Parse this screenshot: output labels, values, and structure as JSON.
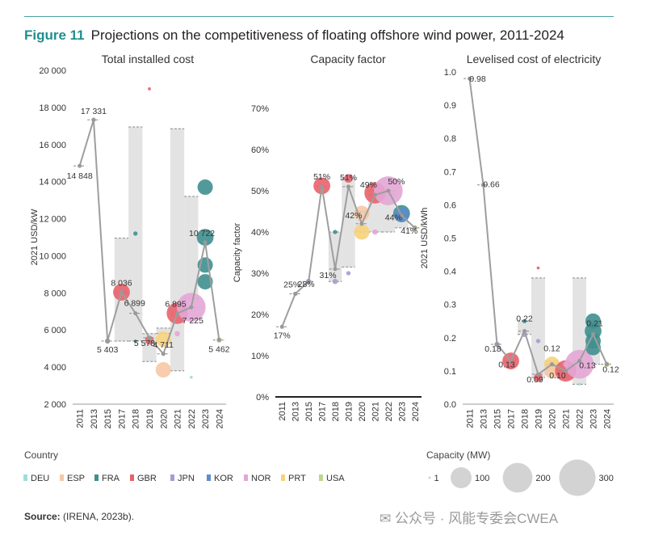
{
  "figure": {
    "number": "Figure 11",
    "title": "Projections on the competitiveness of floating offshore wind power, 2011-2024"
  },
  "colors": {
    "DEU": "#9fdede",
    "ESP": "#f6c8a4",
    "FRA": "#3f8f8f",
    "GBR": "#e8626b",
    "JPN": "#a99ad3",
    "KOR": "#5b8ec9",
    "NOR": "#e3a6d6",
    "PRT": "#f6d27b",
    "USA": "#bcd68c",
    "line": "#9e9e9e",
    "range": "#e3e3e3"
  },
  "chart_data": [
    {
      "type": "line",
      "title": "Total installed cost",
      "ylabel": "2021 USD/kW",
      "ylim": [
        2000,
        20000
      ],
      "yticks": [
        "2 000",
        "4 000",
        "6 000",
        "8 000",
        "10 000",
        "12 000",
        "14 000",
        "16 000",
        "18 000",
        "20 000"
      ],
      "yticks_values": [
        2000,
        4000,
        6000,
        8000,
        10000,
        12000,
        14000,
        16000,
        18000,
        20000
      ],
      "categories": [
        "2011",
        "2013",
        "2015",
        "2017",
        "2018",
        "2019",
        "2020",
        "2021",
        "2022",
        "2023",
        "2024"
      ],
      "series": [
        {
          "values": [
            14848,
            17331,
            5403,
            8036,
            6899,
            5578,
            4711,
            6895,
            7225,
            10722,
            5462
          ]
        }
      ],
      "value_labels": [
        "14 848",
        "17 331",
        "5 403",
        "8 036",
        "6 899",
        "5 578",
        "4 711",
        "6 895",
        "7 225",
        "10 722",
        "5 462"
      ],
      "ranges": [
        null,
        null,
        null,
        [
          5400,
          10950
        ],
        [
          5400,
          16950
        ],
        [
          4300,
          5800
        ],
        [
          5800,
          6100
        ],
        [
          3800,
          16850
        ],
        [
          7700,
          13200
        ],
        null,
        null
      ],
      "projects": [
        {
          "x": "2011",
          "y": 14848,
          "c": "USA",
          "cap": 1
        },
        {
          "x": "2013",
          "y": 17331,
          "c": "JPN",
          "cap": 2
        },
        {
          "x": "2015",
          "y": 5403,
          "c": "JPN",
          "cap": 3
        },
        {
          "x": "2017",
          "y": 8036,
          "c": "GBR",
          "cap": 30
        },
        {
          "x": "2018",
          "y": 11200,
          "c": "FRA",
          "cap": 2
        },
        {
          "x": "2018",
          "y": 5400,
          "c": "FRA",
          "cap": 1
        },
        {
          "x": "2019",
          "y": 19000,
          "c": "GBR",
          "cap": 1
        },
        {
          "x": "2019",
          "y": 5450,
          "c": "GBR",
          "cap": 8
        },
        {
          "x": "2020",
          "y": 5500,
          "c": "PRT",
          "cap": 25
        },
        {
          "x": "2020",
          "y": 3850,
          "c": "ESP",
          "cap": 25
        },
        {
          "x": "2021",
          "y": 5800,
          "c": "NOR",
          "cap": 3
        },
        {
          "x": "2021",
          "y": 6900,
          "c": "GBR",
          "cap": 48
        },
        {
          "x": "2022",
          "y": 7225,
          "c": "NOR",
          "cap": 88
        },
        {
          "x": "2022",
          "y": 3450,
          "c": "DEU",
          "cap": 1
        },
        {
          "x": "2023",
          "y": 13700,
          "c": "FRA",
          "cap": 25
        },
        {
          "x": "2023",
          "y": 11000,
          "c": "FRA",
          "cap": 30
        },
        {
          "x": "2023",
          "y": 9500,
          "c": "FRA",
          "cap": 25
        },
        {
          "x": "2023",
          "y": 8600,
          "c": "FRA",
          "cap": 25
        },
        {
          "x": "2024",
          "y": 5462,
          "c": "USA",
          "cap": 3
        }
      ]
    },
    {
      "type": "line",
      "title": "Capacity factor",
      "ylabel": "Capacity factor",
      "ylim": [
        0,
        70
      ],
      "yticks": [
        "0%",
        "10%",
        "20%",
        "30%",
        "40%",
        "50%",
        "60%",
        "70%"
      ],
      "yticks_values": [
        0,
        10,
        20,
        30,
        40,
        50,
        60,
        70
      ],
      "categories": [
        "2011",
        "2013",
        "2015",
        "2017",
        "2018",
        "2019",
        "2020",
        "2021",
        "2022",
        "2023",
        "2024"
      ],
      "series": [
        {
          "values": [
            17,
            25,
            28,
            51,
            31,
            51,
            42,
            49,
            50,
            44,
            41
          ]
        }
      ],
      "value_labels": [
        "17%",
        "25%",
        "28%",
        "51%",
        "31%",
        "51%",
        "42%",
        "49%",
        "50%",
        "44%",
        "41%"
      ],
      "ranges": [
        null,
        null,
        null,
        null,
        [
          28,
          40
        ],
        [
          31.5,
          53
        ],
        [
          40,
          45
        ],
        [
          40,
          50
        ],
        [
          40,
          50
        ],
        [
          41,
          45
        ],
        null
      ],
      "projects": [
        {
          "x": "2011",
          "y": 17,
          "c": "USA",
          "cap": 1
        },
        {
          "x": "2013",
          "y": 25,
          "c": "JPN",
          "cap": 2
        },
        {
          "x": "2015",
          "y": 28,
          "c": "JPN",
          "cap": 3
        },
        {
          "x": "2017",
          "y": 51.2,
          "c": "GBR",
          "cap": 30
        },
        {
          "x": "2018",
          "y": 40,
          "c": "FRA",
          "cap": 2
        },
        {
          "x": "2018",
          "y": 28,
          "c": "JPN",
          "cap": 3
        },
        {
          "x": "2019",
          "y": 30,
          "c": "JPN",
          "cap": 2
        },
        {
          "x": "2019",
          "y": 53,
          "c": "GBR",
          "cap": 8
        },
        {
          "x": "2020",
          "y": 44.5,
          "c": "ESP",
          "cap": 25
        },
        {
          "x": "2020",
          "y": 40,
          "c": "PRT",
          "cap": 25
        },
        {
          "x": "2021",
          "y": 49.5,
          "c": "GBR",
          "cap": 48
        },
        {
          "x": "2021",
          "y": 40,
          "c": "NOR",
          "cap": 3
        },
        {
          "x": "2022",
          "y": 50,
          "c": "NOR",
          "cap": 88
        },
        {
          "x": "2023",
          "y": 44.5,
          "c": "FRA",
          "cap": 30
        },
        {
          "x": "2023",
          "y": 44.2,
          "c": "KOR",
          "cap": 25
        },
        {
          "x": "2024",
          "y": 41,
          "c": "USA",
          "cap": 3
        }
      ]
    },
    {
      "type": "line",
      "title": "Levelised cost of electricity",
      "ylabel": "2021 USD/kWh",
      "ylim": [
        0,
        1.0
      ],
      "yticks": [
        "0.0",
        "0.1",
        "0.2",
        "0.3",
        "0.4",
        "0.5",
        "0.6",
        "0.7",
        "0.8",
        "0.9",
        "1.0"
      ],
      "yticks_values": [
        0,
        0.1,
        0.2,
        0.3,
        0.4,
        0.5,
        0.6,
        0.7,
        0.8,
        0.9,
        1.0
      ],
      "categories": [
        "2011",
        "2013",
        "2015",
        "2017",
        "2018",
        "2019",
        "2020",
        "2021",
        "2022",
        "2023",
        "2024"
      ],
      "series": [
        {
          "values": [
            0.98,
            0.66,
            0.18,
            0.13,
            0.22,
            0.09,
            0.12,
            0.1,
            0.13,
            0.21,
            0.12
          ]
        }
      ],
      "value_labels": [
        "0.98",
        "0.66",
        "0.18",
        "0.13",
        "0.22",
        "0.09",
        "0.12",
        "0.10",
        "0.13",
        "0.21",
        "0.12"
      ],
      "ranges": [
        null,
        null,
        null,
        null,
        [
          0.21,
          0.25
        ],
        [
          0.08,
          0.38
        ],
        [
          0.09,
          0.13
        ],
        [
          0.08,
          0.12
        ],
        [
          0.06,
          0.38
        ],
        [
          0.12,
          0.25
        ],
        null
      ],
      "projects": [
        {
          "x": "2011",
          "y": 0.98,
          "c": "USA",
          "cap": 1
        },
        {
          "x": "2013",
          "y": 0.66,
          "c": "JPN",
          "cap": 2
        },
        {
          "x": "2015",
          "y": 0.18,
          "c": "JPN",
          "cap": 3
        },
        {
          "x": "2017",
          "y": 0.13,
          "c": "GBR",
          "cap": 30
        },
        {
          "x": "2018",
          "y": 0.25,
          "c": "FRA",
          "cap": 2
        },
        {
          "x": "2018",
          "y": 0.21,
          "c": "JPN",
          "cap": 3
        },
        {
          "x": "2019",
          "y": 0.41,
          "c": "GBR",
          "cap": 1
        },
        {
          "x": "2019",
          "y": 0.19,
          "c": "JPN",
          "cap": 2
        },
        {
          "x": "2019",
          "y": 0.08,
          "c": "GBR",
          "cap": 8
        },
        {
          "x": "2020",
          "y": 0.12,
          "c": "PRT",
          "cap": 25
        },
        {
          "x": "2020",
          "y": 0.1,
          "c": "ESP",
          "cap": 25
        },
        {
          "x": "2021",
          "y": 0.1,
          "c": "GBR",
          "cap": 48
        },
        {
          "x": "2021",
          "y": 0.12,
          "c": "NOR",
          "cap": 3
        },
        {
          "x": "2022",
          "y": 0.12,
          "c": "NOR",
          "cap": 88
        },
        {
          "x": "2022",
          "y": 0.06,
          "c": "DEU",
          "cap": 1
        },
        {
          "x": "2023",
          "y": 0.25,
          "c": "FRA",
          "cap": 25
        },
        {
          "x": "2023",
          "y": 0.22,
          "c": "FRA",
          "cap": 30
        },
        {
          "x": "2023",
          "y": 0.19,
          "c": "FRA",
          "cap": 25
        },
        {
          "x": "2023",
          "y": 0.17,
          "c": "FRA",
          "cap": 25
        },
        {
          "x": "2024",
          "y": 0.12,
          "c": "USA",
          "cap": 3
        }
      ]
    }
  ],
  "legend": {
    "country_title": "Country",
    "countries": [
      "DEU",
      "ESP",
      "FRA",
      "GBR",
      "JPN",
      "KOR",
      "NOR",
      "PRT",
      "USA"
    ],
    "capacity_title": "Capacity (MW)",
    "capacities": [
      1,
      100,
      200,
      300
    ],
    "capacity_labels": [
      "1",
      "100",
      "200",
      "300"
    ]
  },
  "source": {
    "label": "Source:",
    "text": " (IRENA, 2023b)."
  },
  "watermark": "公众号 · 风能专委会CWEA"
}
